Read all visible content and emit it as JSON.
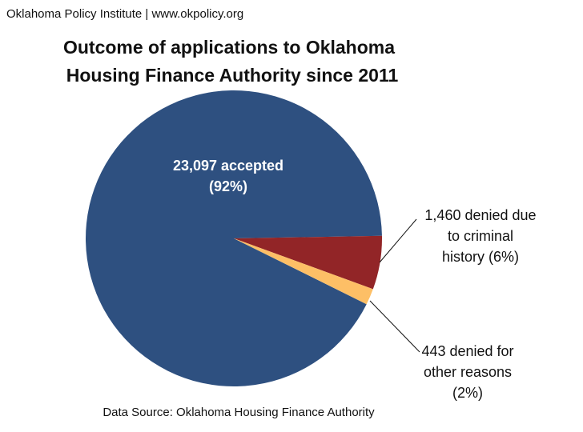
{
  "chart_data": {
    "type": "pie",
    "credit": "Oklahoma Policy Institute | www.okpolicy.org",
    "title": [
      "Outcome of applications to Oklahoma",
      "Housing Finance Authority since 2011"
    ],
    "categories": [
      "accepted",
      "denied due to criminal history",
      "denied for other reasons"
    ],
    "values": [
      23097,
      1460,
      443
    ],
    "value_labels": [
      [
        "23,097 accepted",
        "(92%)"
      ],
      [
        "1,460 denied due",
        "to criminal",
        "history (6%)"
      ],
      [
        "443 denied for",
        "other reasons",
        "(2%)"
      ]
    ],
    "colors": [
      "#2e5080",
      "#922527",
      "#fdbf66"
    ],
    "source": "Data Source: Oklahoma Housing Finance Authority"
  }
}
